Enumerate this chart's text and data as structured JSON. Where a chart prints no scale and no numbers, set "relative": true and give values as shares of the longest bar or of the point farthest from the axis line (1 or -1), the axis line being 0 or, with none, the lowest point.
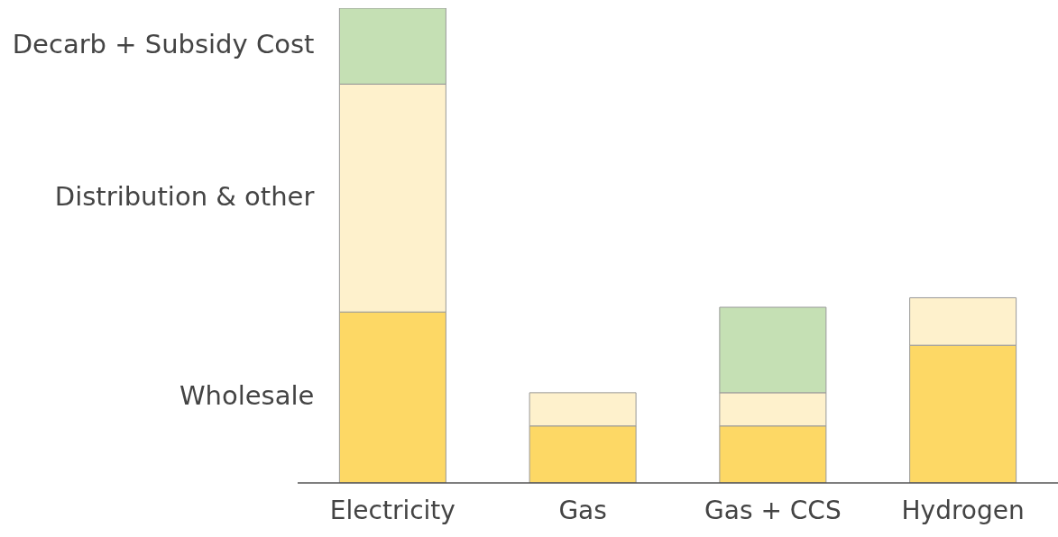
{
  "chart_data": {
    "type": "bar",
    "stacked": true,
    "relative": true,
    "legend": false,
    "categories": [
      "Electricity",
      "Gas",
      "Gas + CCS",
      "Hydrogen"
    ],
    "series": [
      {
        "name": "Wholesale",
        "color": "#fdd865",
        "values": [
          0.36,
          0.12,
          0.12,
          0.29
        ]
      },
      {
        "name": "Distribution & other",
        "color": "#fef1cc",
        "values": [
          0.48,
          0.07,
          0.07,
          0.1
        ]
      },
      {
        "name": "Decarb + Subsidy Cost",
        "color": "#c5e0b4",
        "values": [
          0.16,
          null,
          0.18,
          null
        ]
      }
    ]
  }
}
